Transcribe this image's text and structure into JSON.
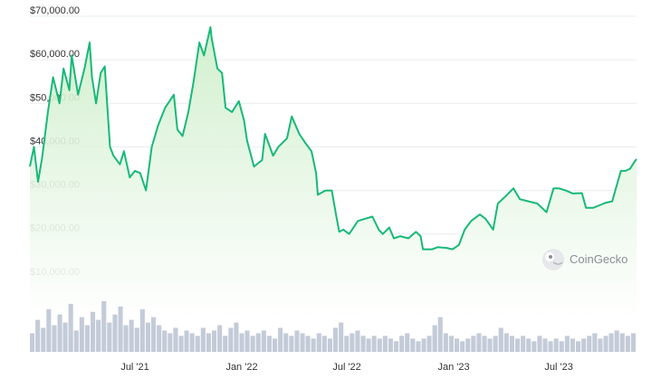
{
  "watermark": {
    "text": "CoinGecko",
    "icon": "gecko-logo-icon"
  },
  "colors": {
    "line": "#17b978",
    "fill_top": "#cdeec9",
    "fill_bottom": "#ffffff",
    "grid": "#e9ecef",
    "volume": "#c4cbd8",
    "text": "#333333"
  },
  "chart_data": {
    "type": "line",
    "title": "",
    "xlabel": "",
    "ylabel": "",
    "ylim": [
      0,
      70000
    ],
    "yticks": [
      10000,
      20000,
      30000,
      40000,
      50000,
      60000,
      70000
    ],
    "ytick_labels": [
      "$10,000.00",
      "$20,000.00",
      "$30,000.00",
      "$40,000.00",
      "$50,000.00",
      "$60,000.00",
      "$70,000.00"
    ],
    "xlim": [
      "2021-01-01",
      "2023-11-12"
    ],
    "xticks": [
      "2021-07-01",
      "2022-01-01",
      "2022-07-01",
      "2023-01-01",
      "2023-07-01"
    ],
    "xtick_labels": [
      "Jul '21",
      "Jan '22",
      "Jul '22",
      "Jan '23",
      "Jul '23"
    ],
    "grid": true,
    "legend": "none",
    "series": [
      {
        "x": [
          "2021-01-01",
          "2021-01-08",
          "2021-01-15",
          "2021-01-22",
          "2021-02-01",
          "2021-02-10",
          "2021-02-21",
          "2021-02-28",
          "2021-03-10",
          "2021-03-14",
          "2021-03-25",
          "2021-04-05",
          "2021-04-14",
          "2021-04-18",
          "2021-04-25",
          "2021-05-03",
          "2021-05-10",
          "2021-05-14",
          "2021-05-19",
          "2021-05-25",
          "2021-06-05",
          "2021-06-12",
          "2021-06-22",
          "2021-07-01",
          "2021-07-10",
          "2021-07-20",
          "2021-07-30",
          "2021-08-10",
          "2021-08-22",
          "2021-09-06",
          "2021-09-12",
          "2021-09-21",
          "2021-10-01",
          "2021-10-10",
          "2021-10-20",
          "2021-10-28",
          "2021-11-08",
          "2021-11-10",
          "2021-11-20",
          "2021-11-28",
          "2021-12-04",
          "2021-12-15",
          "2021-12-27",
          "2022-01-05",
          "2022-01-10",
          "2022-01-22",
          "2022-02-05",
          "2022-02-10",
          "2022-02-24",
          "2022-03-05",
          "2022-03-20",
          "2022-03-28",
          "2022-04-10",
          "2022-04-20",
          "2022-05-01",
          "2022-05-09",
          "2022-05-12",
          "2022-05-25",
          "2022-06-05",
          "2022-06-13",
          "2022-06-18",
          "2022-06-25",
          "2022-07-05",
          "2022-07-20",
          "2022-08-01",
          "2022-08-14",
          "2022-08-25",
          "2022-09-01",
          "2022-09-12",
          "2022-09-20",
          "2022-10-01",
          "2022-10-15",
          "2022-10-28",
          "2022-11-05",
          "2022-11-09",
          "2022-11-15",
          "2022-11-25",
          "2022-12-05",
          "2022-12-20",
          "2022-12-30",
          "2023-01-10",
          "2023-01-20",
          "2023-01-31",
          "2023-02-15",
          "2023-02-25",
          "2023-03-10",
          "2023-03-18",
          "2023-03-30",
          "2023-04-14",
          "2023-04-25",
          "2023-05-10",
          "2023-05-25",
          "2023-06-10",
          "2023-06-22",
          "2023-07-01",
          "2023-07-13",
          "2023-07-25",
          "2023-08-10",
          "2023-08-17",
          "2023-08-29",
          "2023-09-11",
          "2023-09-20",
          "2023-10-01",
          "2023-10-16",
          "2023-10-24",
          "2023-11-01",
          "2023-11-09",
          "2023-11-12"
        ],
        "y": [
          35500,
          40000,
          32000,
          37500,
          48000,
          56000,
          50000,
          58000,
          53000,
          61000,
          52000,
          58000,
          64000,
          56000,
          50000,
          57000,
          58500,
          50000,
          40000,
          38000,
          36000,
          39000,
          33000,
          34500,
          34000,
          30000,
          40000,
          45000,
          49000,
          52000,
          44000,
          42500,
          48000,
          55000,
          64000,
          61000,
          67500,
          65000,
          58000,
          57000,
          49000,
          48000,
          50500,
          46000,
          41500,
          35500,
          37000,
          43000,
          38000,
          40000,
          42000,
          47000,
          43000,
          41000,
          39000,
          34000,
          29000,
          30000,
          30000,
          24000,
          20500,
          21000,
          20000,
          23000,
          23500,
          24000,
          21000,
          20000,
          21500,
          19000,
          19500,
          19000,
          20500,
          19500,
          16500,
          16500,
          16500,
          17000,
          16800,
          16500,
          17500,
          21000,
          23000,
          24500,
          23500,
          21000,
          27000,
          28500,
          30500,
          28000,
          27500,
          27000,
          25000,
          30500,
          30500,
          30000,
          29300,
          29400,
          26000,
          26000,
          26700,
          27200,
          27500,
          34500,
          34500,
          35000,
          36700,
          37200
        ]
      }
    ],
    "volume": {
      "note": "relative volume bars, no axis printed",
      "values": [
        0.35,
        0.6,
        0.45,
        0.8,
        0.5,
        0.7,
        0.55,
        0.9,
        0.4,
        0.65,
        0.5,
        0.75,
        0.6,
        0.95,
        0.55,
        0.7,
        0.85,
        0.5,
        0.6,
        0.45,
        0.8,
        0.55,
        0.65,
        0.5,
        0.4,
        0.35,
        0.45,
        0.3,
        0.4,
        0.35,
        0.3,
        0.45,
        0.35,
        0.4,
        0.5,
        0.3,
        0.45,
        0.55,
        0.35,
        0.4,
        0.3,
        0.35,
        0.4,
        0.3,
        0.25,
        0.45,
        0.35,
        0.3,
        0.4,
        0.35,
        0.3,
        0.25,
        0.35,
        0.3,
        0.25,
        0.45,
        0.55,
        0.3,
        0.35,
        0.4,
        0.3,
        0.25,
        0.3,
        0.25,
        0.3,
        0.25,
        0.2,
        0.3,
        0.35,
        0.25,
        0.2,
        0.25,
        0.3,
        0.5,
        0.65,
        0.35,
        0.3,
        0.25,
        0.2,
        0.25,
        0.3,
        0.35,
        0.3,
        0.25,
        0.3,
        0.45,
        0.35,
        0.3,
        0.25,
        0.3,
        0.25,
        0.2,
        0.3,
        0.25,
        0.2,
        0.25,
        0.2,
        0.3,
        0.25,
        0.2,
        0.25,
        0.3,
        0.35,
        0.25,
        0.3,
        0.35,
        0.4,
        0.35,
        0.3,
        0.35
      ]
    }
  }
}
